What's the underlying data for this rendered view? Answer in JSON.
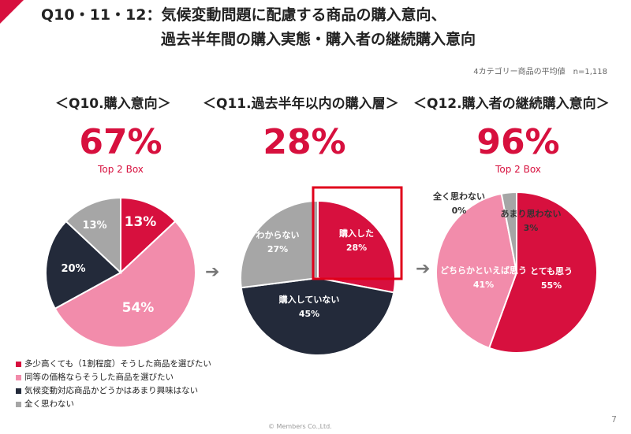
{
  "title": {
    "line1": "Q10・11・12：気候変動問題に配慮する商品の購入意向、",
    "line2": "過去半年間の購入実態・購入者の継続購入意向"
  },
  "note": "4カテゴリー商品の平均値　n=1,118",
  "footer": {
    "copyright": "© Members Co.,Ltd.",
    "page": "7"
  },
  "panels": [
    {
      "heading": "＜Q10.購入意向＞",
      "big": "67%",
      "sub": "Top 2 Box"
    },
    {
      "heading": "＜Q11.過去半年以内の購入層＞",
      "big": "28%",
      "sub": ""
    },
    {
      "heading": "＜Q12.購入者の継続購入意向＞",
      "big": "96%",
      "sub": "Top 2 Box"
    }
  ],
  "legend": [
    {
      "label": "多少高くても（1割程度）そうした商品を選びたい",
      "color": "#d7103e"
    },
    {
      "label": "同等の価格ならそうした商品を選びたい",
      "color": "#f28cab"
    },
    {
      "label": "気候変動対応商品かどうかはあまり興味はない",
      "color": "#232a3a"
    },
    {
      "label": "全く思わない",
      "color": "#a6a6a6"
    }
  ],
  "arrows": [
    "➔",
    "➔"
  ],
  "chart_data": [
    {
      "type": "pie",
      "title": "Q10.購入意向",
      "slices": [
        {
          "label": "",
          "value": 13,
          "value_label": "13%",
          "color": "#d7103e",
          "text_color": "#ffffff"
        },
        {
          "label": "",
          "value": 54,
          "value_label": "54%",
          "color": "#f28cab",
          "text_color": "#ffffff"
        },
        {
          "label": "",
          "value": 20,
          "value_label": "20%",
          "color": "#232a3a",
          "text_color": "#ffffff"
        },
        {
          "label": "",
          "value": 13,
          "value_label": "13%",
          "color": "#a6a6a6",
          "text_color": "#ffffff"
        }
      ]
    },
    {
      "type": "pie",
      "title": "Q11.過去半年以内の購入層",
      "slices": [
        {
          "label": "購入した",
          "value": 28,
          "value_label": "28%",
          "color": "#d7103e",
          "text_color": "#ffffff"
        },
        {
          "label": "購入していない",
          "value": 45,
          "value_label": "45%",
          "color": "#232a3a",
          "text_color": "#ffffff"
        },
        {
          "label": "わからない",
          "value": 27,
          "value_label": "27%",
          "color": "#a6a6a6",
          "text_color": "#ffffff"
        }
      ],
      "highlight": "購入した"
    },
    {
      "type": "pie",
      "title": "Q12.購入者の継続購入意向",
      "slices": [
        {
          "label": "とても思う",
          "value": 55,
          "value_label": "55%",
          "color": "#d7103e",
          "text_color": "#ffffff"
        },
        {
          "label": "どちらかといえば思う",
          "value": 41,
          "value_label": "41%",
          "color": "#f28cab",
          "text_color": "#ffffff"
        },
        {
          "label": "あまり思わない",
          "value": 3,
          "value_label": "3%",
          "color": "#a6a6a6",
          "text_color": "#333333"
        },
        {
          "label": "全く思わない",
          "value": 0,
          "value_label": "0%",
          "color": "#232a3a",
          "text_color": "#333333"
        }
      ]
    }
  ]
}
